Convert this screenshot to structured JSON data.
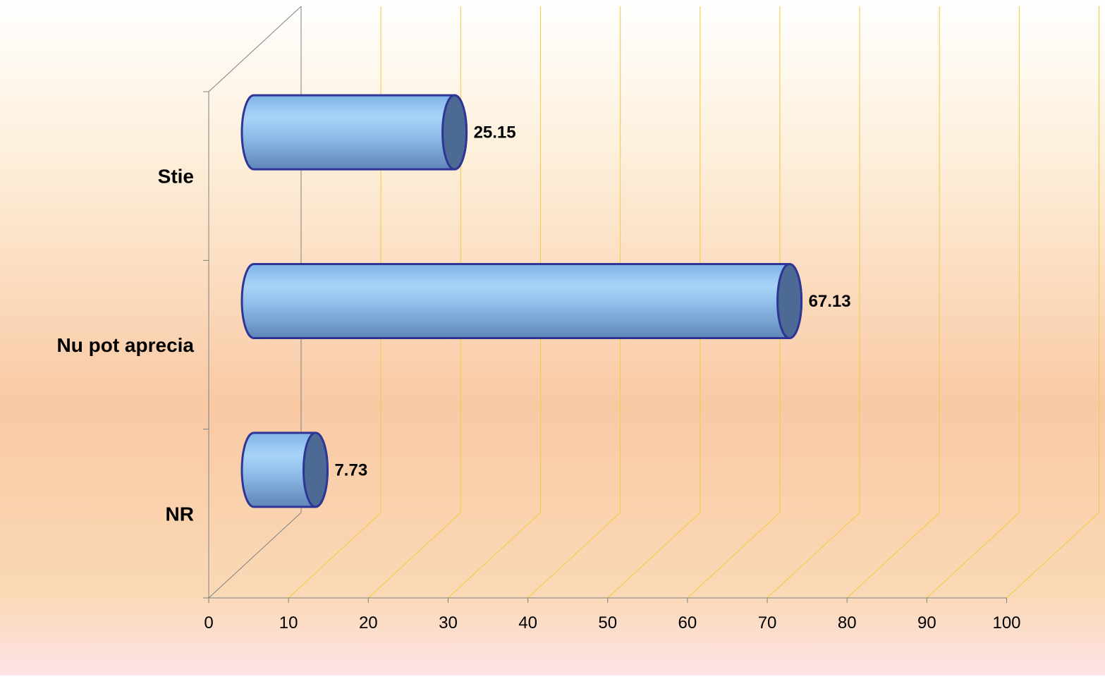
{
  "chart_data": {
    "type": "bar",
    "orientation": "horizontal",
    "style": "3d-cylinder",
    "categories": [
      "Stie",
      "Nu pot aprecia",
      "NR"
    ],
    "values": [
      25.15,
      67.13,
      7.73
    ],
    "value_labels": [
      "25.15",
      "67.13",
      "7.73"
    ],
    "xlim": [
      0,
      100
    ],
    "xticks": [
      "0",
      "10",
      "20",
      "30",
      "40",
      "50",
      "60",
      "70",
      "80",
      "90",
      "100"
    ],
    "grid": true,
    "legend": "none",
    "title": "",
    "xlabel": "",
    "ylabel": ""
  },
  "colors": {
    "bar_light": "#a9d4f8",
    "bar_mid": "#84b3e2",
    "bar_dark": "#6f98c8",
    "bar_outline": "#2f3597",
    "bar_cap": "#4c6a93",
    "gridline": "#f2cc37",
    "axis": "#808080",
    "background_top": "#ffffff",
    "background_mid": "#f9c9a4",
    "background_bottom": "#fde2e6"
  }
}
